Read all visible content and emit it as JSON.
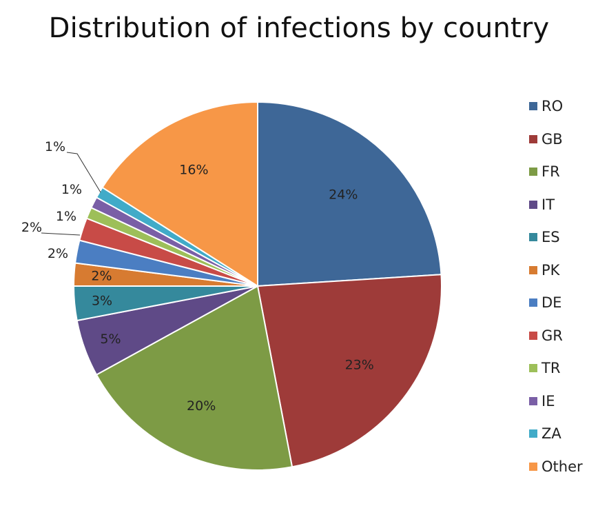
{
  "chart_data": {
    "type": "pie",
    "title": "Distribution of infections by country",
    "legend_position": "right",
    "categories": [
      "RO",
      "GB",
      "FR",
      "IT",
      "ES",
      "PK",
      "DE",
      "GR",
      "TR",
      "IE",
      "ZA",
      "Other"
    ],
    "values": [
      24,
      23,
      20,
      5,
      3,
      2,
      2,
      2,
      1,
      1,
      1,
      16
    ],
    "labels": [
      "24%",
      "23%",
      "20%",
      "5%",
      "3%",
      "2%",
      "2%",
      "2%",
      "1%",
      "1%",
      "1%",
      "16%"
    ],
    "colors": [
      "#3E6797",
      "#9E3B39",
      "#7D9B45",
      "#5F4A87",
      "#35899C",
      "#D77B31",
      "#4B7EC2",
      "#C84B47",
      "#9DBF59",
      "#7A5FA6",
      "#41ABC8",
      "#F79747"
    ]
  }
}
